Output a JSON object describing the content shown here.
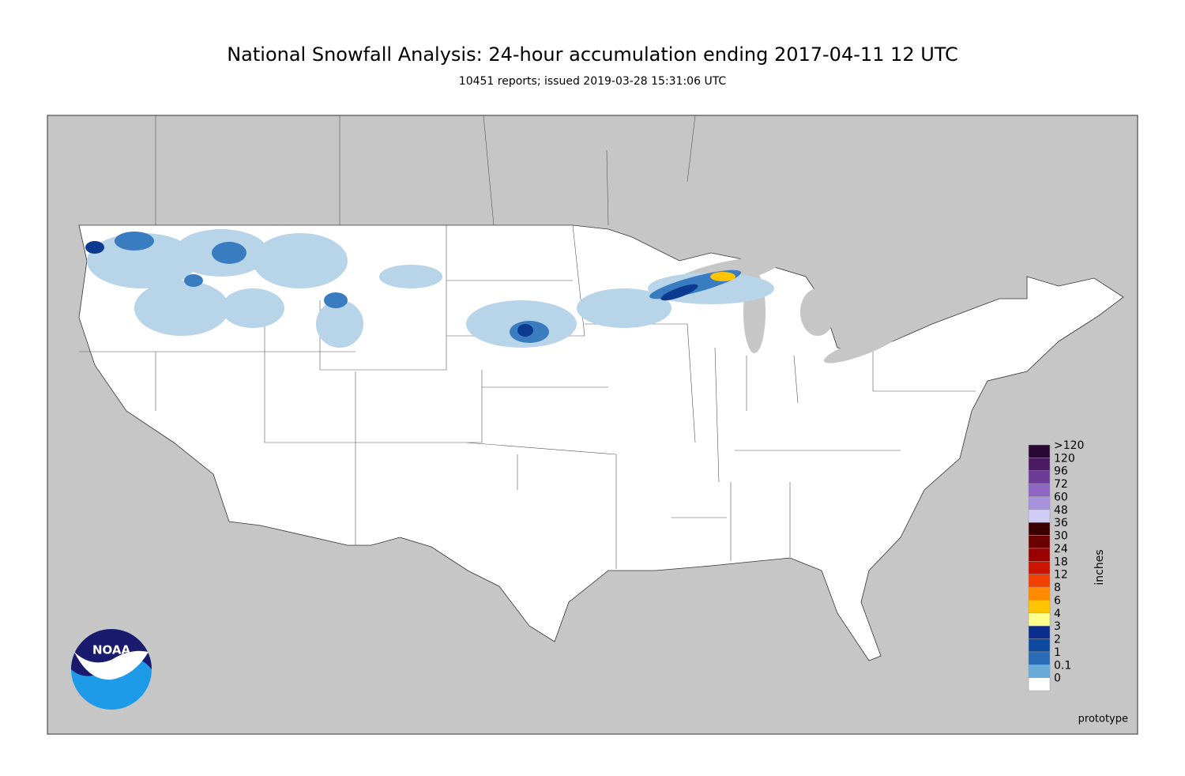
{
  "header": {
    "title": "National Snowfall Analysis: 24-hour accumulation ending 2017-04-11 12 UTC",
    "subtitle": "10451 reports; issued 2019-03-28 15:31:06 UTC"
  },
  "legend": {
    "unit": "inches",
    "items": [
      {
        "label": ">120",
        "color": "#2a0836"
      },
      {
        "label": "120",
        "color": "#4a1a62"
      },
      {
        "label": "96",
        "color": "#6b3d96"
      },
      {
        "label": "72",
        "color": "#8c66c2"
      },
      {
        "label": "60",
        "color": "#a892dc"
      },
      {
        "label": "48",
        "color": "#d0ccf6"
      },
      {
        "label": "36",
        "color": "#3a0000"
      },
      {
        "label": "30",
        "color": "#6a0000"
      },
      {
        "label": "24",
        "color": "#9a0000"
      },
      {
        "label": "18",
        "color": "#cc1400"
      },
      {
        "label": "12",
        "color": "#f04000"
      },
      {
        "label": "8",
        "color": "#ff8a00"
      },
      {
        "label": "6",
        "color": "#ffc400"
      },
      {
        "label": "4",
        "color": "#ffff8c"
      },
      {
        "label": "3",
        "color": "#0a2c8c"
      },
      {
        "label": "2",
        "color": "#0c4aa0"
      },
      {
        "label": "1",
        "color": "#2a6cb8"
      },
      {
        "label": "0.1",
        "color": "#6aaad8"
      },
      {
        "label": "0",
        "color": "#ffffff"
      }
    ]
  },
  "logo": {
    "text": "NOAA"
  },
  "footer": {
    "note": "prototype"
  }
}
